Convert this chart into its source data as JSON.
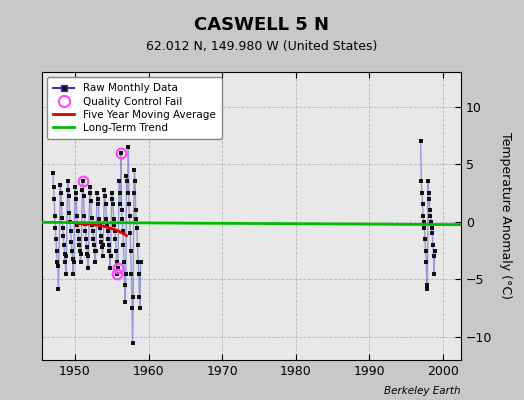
{
  "title": "CASWELL 5 N",
  "subtitle": "62.012 N, 149.980 W (United States)",
  "ylabel": "Temperature Anomaly (°C)",
  "credit": "Berkeley Earth",
  "xlim": [
    1945.5,
    2002.5
  ],
  "ylim": [
    -12,
    13
  ],
  "yticks": [
    -10,
    -5,
    0,
    5,
    10
  ],
  "xticks": [
    1950,
    1960,
    1970,
    1980,
    1990,
    2000
  ],
  "bg_color": "#c8c8c8",
  "plot_bg_color": "#e8e8e8",
  "raw_color": "#3333cc",
  "raw_alpha": 0.45,
  "raw_lw": 1.0,
  "dot_color": "#111111",
  "dot_size": 2.5,
  "qc_color": "#ff44ff",
  "ma_color": "#dd0000",
  "trend_color": "#00bb00",
  "trend_lw": 2.0,
  "raw_monthly_data_1950s": [
    [
      1947.0,
      4.2
    ],
    [
      1947.08,
      3.0
    ],
    [
      1947.17,
      2.0
    ],
    [
      1947.25,
      0.5
    ],
    [
      1947.33,
      -0.5
    ],
    [
      1947.42,
      -1.5
    ],
    [
      1947.5,
      -2.5
    ],
    [
      1947.58,
      -3.5
    ],
    [
      1947.67,
      -3.8
    ],
    [
      1947.75,
      -5.8
    ],
    [
      1948.0,
      3.2
    ],
    [
      1948.08,
      2.5
    ],
    [
      1948.17,
      1.5
    ],
    [
      1948.25,
      0.3
    ],
    [
      1948.33,
      -0.5
    ],
    [
      1948.42,
      -1.2
    ],
    [
      1948.5,
      -2.0
    ],
    [
      1948.58,
      -2.8
    ],
    [
      1948.67,
      -3.5
    ],
    [
      1948.75,
      -4.5
    ],
    [
      1948.83,
      -3.0
    ],
    [
      1949.0,
      3.5
    ],
    [
      1949.08,
      2.8
    ],
    [
      1949.17,
      2.2
    ],
    [
      1949.25,
      0.8
    ],
    [
      1949.33,
      0.0
    ],
    [
      1949.42,
      -0.8
    ],
    [
      1949.5,
      -1.8
    ],
    [
      1949.58,
      -2.5
    ],
    [
      1949.67,
      -3.2
    ],
    [
      1949.75,
      -4.5
    ],
    [
      1949.83,
      -3.5
    ],
    [
      1950.0,
      3.0
    ],
    [
      1950.08,
      2.5
    ],
    [
      1950.17,
      2.0
    ],
    [
      1950.25,
      0.5
    ],
    [
      1950.33,
      -0.3
    ],
    [
      1950.42,
      -0.8
    ],
    [
      1950.5,
      -1.5
    ],
    [
      1950.58,
      -2.0
    ],
    [
      1950.67,
      -2.5
    ],
    [
      1950.75,
      -3.5
    ],
    [
      1950.83,
      -2.8
    ],
    [
      1951.0,
      2.8
    ],
    [
      1951.08,
      3.5
    ],
    [
      1951.17,
      2.2
    ],
    [
      1951.25,
      0.5
    ],
    [
      1951.33,
      -0.2
    ],
    [
      1951.42,
      -0.8
    ],
    [
      1951.5,
      -1.5
    ],
    [
      1951.58,
      -2.2
    ],
    [
      1951.67,
      -2.8
    ],
    [
      1951.75,
      -4.0
    ],
    [
      1951.83,
      -3.0
    ],
    [
      1952.0,
      3.0
    ],
    [
      1952.08,
      2.5
    ],
    [
      1952.17,
      1.8
    ],
    [
      1952.25,
      0.3
    ],
    [
      1952.33,
      -0.3
    ],
    [
      1952.42,
      -0.8
    ],
    [
      1952.5,
      -1.5
    ],
    [
      1952.58,
      -2.0
    ],
    [
      1952.67,
      -2.5
    ],
    [
      1952.75,
      -3.5
    ],
    [
      1952.83,
      -2.5
    ],
    [
      1953.0,
      2.5
    ],
    [
      1953.08,
      2.0
    ],
    [
      1953.17,
      1.5
    ],
    [
      1953.25,
      0.2
    ],
    [
      1953.33,
      -0.2
    ],
    [
      1953.42,
      -0.5
    ],
    [
      1953.5,
      -1.2
    ],
    [
      1953.58,
      -1.8
    ],
    [
      1953.67,
      -2.2
    ],
    [
      1953.75,
      -3.0
    ],
    [
      1953.83,
      -2.0
    ],
    [
      1954.0,
      2.8
    ],
    [
      1954.08,
      2.2
    ],
    [
      1954.17,
      1.5
    ],
    [
      1954.25,
      0.2
    ],
    [
      1954.33,
      -0.3
    ],
    [
      1954.42,
      -0.8
    ],
    [
      1954.5,
      -1.5
    ],
    [
      1954.58,
      -2.0
    ],
    [
      1954.67,
      -2.5
    ],
    [
      1954.75,
      -4.0
    ],
    [
      1954.83,
      -3.0
    ],
    [
      1955.0,
      2.5
    ],
    [
      1955.08,
      2.0
    ],
    [
      1955.17,
      1.5
    ],
    [
      1955.25,
      0.2
    ],
    [
      1955.33,
      -0.3
    ],
    [
      1955.42,
      -0.8
    ],
    [
      1955.5,
      -1.5
    ],
    [
      1955.58,
      -2.5
    ],
    [
      1955.67,
      -3.5
    ],
    [
      1955.75,
      -4.5
    ],
    [
      1955.83,
      -4.0
    ],
    [
      1956.0,
      3.5
    ],
    [
      1956.08,
      2.5
    ],
    [
      1956.17,
      1.5
    ],
    [
      1956.25,
      6.0
    ],
    [
      1956.33,
      1.0
    ],
    [
      1956.42,
      0.2
    ],
    [
      1956.5,
      -0.8
    ],
    [
      1956.58,
      -2.0
    ],
    [
      1956.67,
      -3.5
    ],
    [
      1956.75,
      -5.5
    ],
    [
      1956.83,
      -7.0
    ],
    [
      1956.92,
      -4.5
    ],
    [
      1957.0,
      4.0
    ],
    [
      1957.08,
      3.5
    ],
    [
      1957.17,
      2.5
    ],
    [
      1957.25,
      6.5
    ],
    [
      1957.33,
      1.5
    ],
    [
      1957.42,
      0.5
    ],
    [
      1957.5,
      -1.0
    ],
    [
      1957.58,
      -2.5
    ],
    [
      1957.67,
      -4.5
    ],
    [
      1957.75,
      -7.5
    ],
    [
      1957.83,
      -10.5
    ],
    [
      1957.92,
      -6.5
    ],
    [
      1958.0,
      2.5
    ],
    [
      1958.08,
      4.5
    ],
    [
      1958.17,
      3.5
    ],
    [
      1958.25,
      1.0
    ],
    [
      1958.33,
      0.2
    ],
    [
      1958.42,
      -0.5
    ],
    [
      1958.5,
      -2.0
    ],
    [
      1958.58,
      -3.5
    ],
    [
      1958.67,
      -4.5
    ],
    [
      1958.75,
      -6.5
    ],
    [
      1958.83,
      -7.5
    ],
    [
      1958.92,
      -3.5
    ]
  ],
  "raw_monthly_data_2000s": [
    [
      1997.0,
      7.0
    ],
    [
      1997.08,
      3.5
    ],
    [
      1997.17,
      2.5
    ],
    [
      1997.25,
      1.5
    ],
    [
      1997.33,
      0.5
    ],
    [
      1997.42,
      0.0
    ],
    [
      1997.5,
      -0.5
    ],
    [
      1997.58,
      -1.5
    ],
    [
      1997.67,
      -2.5
    ],
    [
      1997.75,
      -3.5
    ],
    [
      1997.83,
      -5.5
    ],
    [
      1997.92,
      -5.8
    ],
    [
      1998.0,
      3.5
    ],
    [
      1998.08,
      2.5
    ],
    [
      1998.17,
      2.0
    ],
    [
      1998.25,
      1.0
    ],
    [
      1998.33,
      0.5
    ],
    [
      1998.42,
      0.0
    ],
    [
      1998.5,
      -0.5
    ],
    [
      1998.58,
      -1.0
    ],
    [
      1998.67,
      -2.0
    ],
    [
      1998.75,
      -3.0
    ],
    [
      1998.83,
      -4.5
    ],
    [
      1998.92,
      -2.5
    ]
  ],
  "qc_fail_points": [
    [
      1951.08,
      3.5
    ],
    [
      1956.25,
      6.0
    ],
    [
      1955.75,
      -4.5
    ],
    [
      1955.83,
      -4.0
    ]
  ],
  "moving_avg": [
    [
      1949.5,
      -0.05
    ],
    [
      1950.0,
      -0.1
    ],
    [
      1950.5,
      -0.15
    ],
    [
      1951.0,
      -0.18
    ],
    [
      1951.5,
      -0.2
    ],
    [
      1952.0,
      -0.22
    ],
    [
      1952.5,
      -0.25
    ],
    [
      1953.0,
      -0.3
    ],
    [
      1953.5,
      -0.35
    ],
    [
      1954.0,
      -0.4
    ],
    [
      1954.5,
      -0.5
    ],
    [
      1955.0,
      -0.6
    ],
    [
      1955.5,
      -0.7
    ],
    [
      1956.0,
      -0.85
    ],
    [
      1956.5,
      -1.0
    ],
    [
      1957.0,
      -1.2
    ]
  ],
  "trend_x": [
    1945.5,
    2002.5
  ],
  "trend_y": [
    -0.05,
    -0.25
  ]
}
